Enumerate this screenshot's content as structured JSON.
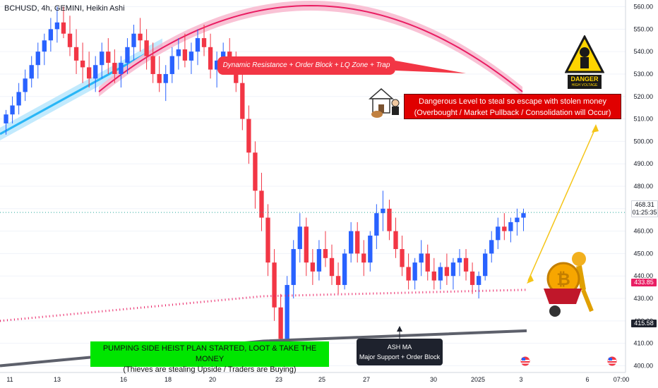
{
  "header": {
    "symbol_line": "BCHUSD, 4h, GEMINI, Heikin Ashi"
  },
  "price_axis": {
    "ticks": [
      "560.00",
      "550.00",
      "540.00",
      "530.00",
      "520.00",
      "510.00",
      "500.00",
      "490.00",
      "480.00",
      "470.00",
      "460.00",
      "450.00",
      "440.00",
      "430.00",
      "420.00",
      "410.00",
      "400.00"
    ]
  },
  "badges": {
    "last_price": "468.31",
    "countdown": "01:25:35",
    "ma_pink": "433.85",
    "ma_gray": "415.58"
  },
  "time_axis": {
    "ticks": [
      "11",
      "13",
      "16",
      "18",
      "20",
      "23",
      "25",
      "27",
      "30",
      "2025",
      "3",
      "6",
      "07:00"
    ]
  },
  "annotations": {
    "resistance": "Dynamic Resistance + Order Block + LQ Zone + Trap area",
    "danger_line1": "Dangerous Level to steal so escape with stolen money",
    "danger_line2": "(Overbought / Market Pullback / Consolidation will Occur)",
    "danger_sign_word": "DANGER",
    "danger_sign_sub": "HIGH VOLTAGE",
    "heist_line1": "PUMPING SIDE HEIST PLAN STARTED, LOOT & TAKE THE MONEY",
    "heist_line2": "(Thieves are stealing Upside / Traders are Buying)",
    "ash_title": "ASH MA",
    "ash_sub": "Major Support + Order Block"
  },
  "colors": {
    "up": "#2962ff",
    "down": "#f23645",
    "pink_ma": "#e91e63",
    "gray_ma": "#5d606b",
    "blue_band": "#29b6f6",
    "pink_band": "#e91e63",
    "green_box": "#00e600",
    "red_box": "#e00000",
    "dark_box": "#1e222d"
  },
  "chart_data": {
    "type": "candlestick",
    "title": "BCHUSD, 4h, GEMINI, Heikin Ashi",
    "ylim": [
      397,
      563
    ],
    "y_ticks": [
      400,
      410,
      420,
      430,
      440,
      450,
      460,
      470,
      480,
      490,
      500,
      510,
      520,
      530,
      540,
      550,
      560
    ],
    "x_ticks": [
      "11",
      "13",
      "16",
      "18",
      "20",
      "23",
      "25",
      "27",
      "30",
      "2025",
      "3",
      "6",
      "07:00"
    ],
    "last_price": 468.31,
    "pink_ma_last": 433.85,
    "gray_ma_last": 415.58,
    "candles": [
      [
        508,
        514,
        503,
        512
      ],
      [
        512,
        520,
        508,
        516
      ],
      [
        516,
        526,
        512,
        522
      ],
      [
        522,
        532,
        518,
        528
      ],
      [
        528,
        538,
        524,
        534
      ],
      [
        534,
        544,
        528,
        540
      ],
      [
        540,
        548,
        534,
        545
      ],
      [
        545,
        555,
        540,
        550
      ],
      [
        550,
        560,
        544,
        553
      ],
      [
        553,
        560,
        546,
        548
      ],
      [
        548,
        556,
        538,
        542
      ],
      [
        542,
        550,
        530,
        536
      ],
      [
        536,
        544,
        526,
        533
      ],
      [
        533,
        540,
        524,
        528
      ],
      [
        528,
        538,
        522,
        534
      ],
      [
        534,
        544,
        528,
        540
      ],
      [
        540,
        546,
        530,
        535
      ],
      [
        535,
        541,
        526,
        530
      ],
      [
        530,
        538,
        524,
        535
      ],
      [
        535,
        546,
        530,
        542
      ],
      [
        542,
        552,
        536,
        548
      ],
      [
        548,
        555,
        540,
        545
      ],
      [
        545,
        550,
        532,
        538
      ],
      [
        538,
        544,
        526,
        530
      ],
      [
        530,
        538,
        522,
        526
      ],
      [
        526,
        534,
        518,
        530
      ],
      [
        530,
        542,
        526,
        538
      ],
      [
        538,
        546,
        532,
        541
      ],
      [
        541,
        548,
        533,
        536
      ],
      [
        536,
        544,
        530,
        540
      ],
      [
        540,
        550,
        534,
        546
      ],
      [
        546,
        552,
        538,
        542
      ],
      [
        542,
        548,
        528,
        532
      ],
      [
        532,
        540,
        524,
        536
      ],
      [
        536,
        544,
        530,
        540
      ],
      [
        540,
        546,
        532,
        535
      ],
      [
        535,
        540,
        522,
        526
      ],
      [
        526,
        532,
        505,
        510
      ],
      [
        510,
        516,
        490,
        495
      ],
      [
        495,
        500,
        470,
        478
      ],
      [
        478,
        486,
        460,
        466
      ],
      [
        466,
        472,
        440,
        446
      ],
      [
        446,
        452,
        420,
        426
      ],
      [
        426,
        432,
        405,
        412
      ],
      [
        412,
        440,
        408,
        436
      ],
      [
        436,
        456,
        430,
        452
      ],
      [
        452,
        468,
        446,
        462
      ],
      [
        462,
        466,
        440,
        446
      ],
      [
        446,
        452,
        436,
        442
      ],
      [
        442,
        456,
        438,
        452
      ],
      [
        452,
        460,
        444,
        448
      ],
      [
        448,
        454,
        436,
        440
      ],
      [
        440,
        446,
        432,
        436
      ],
      [
        436,
        452,
        434,
        450
      ],
      [
        450,
        464,
        446,
        460
      ],
      [
        460,
        464,
        446,
        450
      ],
      [
        450,
        456,
        440,
        446
      ],
      [
        446,
        460,
        442,
        458
      ],
      [
        458,
        472,
        452,
        468
      ],
      [
        468,
        478,
        460,
        470
      ],
      [
        470,
        474,
        456,
        460
      ],
      [
        460,
        466,
        448,
        452
      ],
      [
        452,
        458,
        440,
        444
      ],
      [
        444,
        450,
        434,
        438
      ],
      [
        438,
        448,
        434,
        446
      ],
      [
        446,
        456,
        440,
        450
      ],
      [
        450,
        454,
        438,
        442
      ],
      [
        442,
        448,
        434,
        438
      ],
      [
        438,
        446,
        434,
        444
      ],
      [
        444,
        450,
        436,
        440
      ],
      [
        440,
        448,
        434,
        446
      ],
      [
        446,
        452,
        440,
        448
      ],
      [
        448,
        452,
        438,
        442
      ],
      [
        442,
        446,
        432,
        436
      ],
      [
        436,
        442,
        430,
        440
      ],
      [
        440,
        452,
        438,
        450
      ],
      [
        450,
        460,
        446,
        456
      ],
      [
        456,
        466,
        452,
        462
      ],
      [
        462,
        468,
        456,
        460
      ],
      [
        460,
        466,
        455,
        464
      ],
      [
        464,
        470,
        458,
        466
      ],
      [
        466,
        470,
        460,
        468
      ]
    ],
    "series": [
      {
        "name": "Pink MA",
        "x": [
          0,
          0.5,
          1
        ],
        "values": [
          420,
          431,
          433.85
        ]
      },
      {
        "name": "Gray MA",
        "x": [
          0,
          0.5,
          1
        ],
        "values": [
          400,
          411,
          415.58
        ]
      }
    ]
  }
}
